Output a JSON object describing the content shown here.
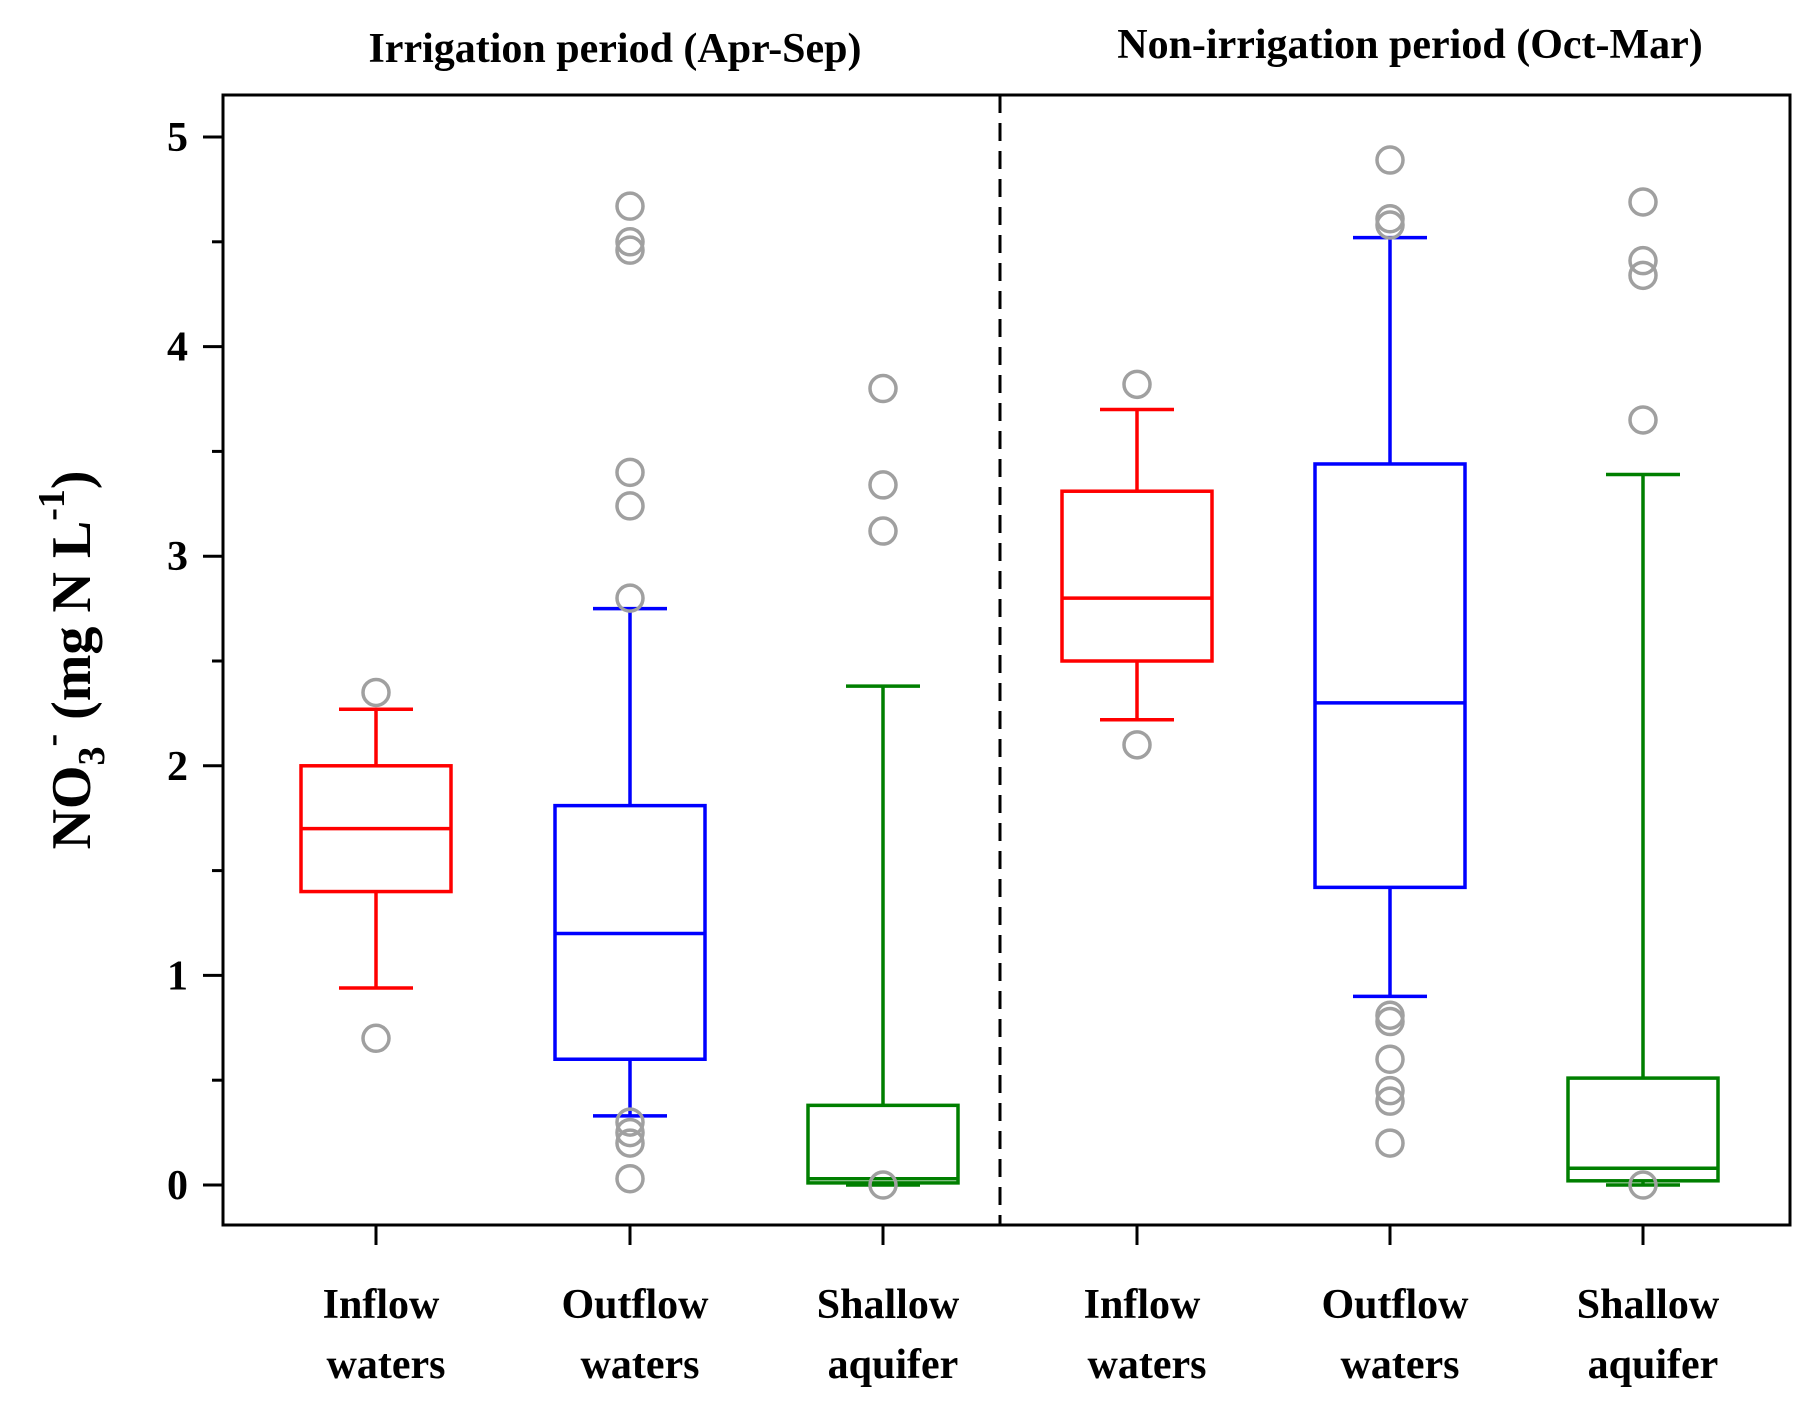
{
  "chart_data": {
    "type": "boxplot",
    "ylabel": {
      "base": "NO",
      "sub": "3",
      "sup": "-",
      "units": "(mg N L",
      "units_sup": "-1",
      "close": ")"
    },
    "ylim": [
      -0.2,
      5.2
    ],
    "yticks_major": [
      0,
      1,
      2,
      3,
      4,
      5
    ],
    "yticks_minor": [
      0.5,
      1.5,
      2.5,
      3.5,
      4.5
    ],
    "ytick_labels": [
      "0",
      "1",
      "2",
      "3",
      "4",
      "5"
    ],
    "divider_between_periods": "dashed",
    "colors": {
      "Inflow": "#ff0000",
      "Outflow": "#0000ff",
      "Shallow": "#007f00",
      "outlier": "#a0a0a0"
    },
    "periods": [
      {
        "title": "Irrigation period (Apr-Sep)",
        "boxes": [
          {
            "line1": "Inflow",
            "line2": "waters",
            "color_key": "Inflow",
            "whisker_low": 0.94,
            "q1": 1.4,
            "median": 1.7,
            "q3": 2.0,
            "whisker_high": 2.27,
            "outliers": [
              0.7,
              2.35
            ]
          },
          {
            "line1": "Outflow",
            "line2": "waters",
            "color_key": "Outflow",
            "whisker_low": 0.33,
            "q1": 0.6,
            "median": 1.2,
            "q3": 1.81,
            "whisker_high": 2.75,
            "outliers": [
              0.03,
              0.2,
              0.25,
              0.3,
              2.8,
              3.24,
              3.4,
              4.46,
              4.5,
              4.67
            ]
          },
          {
            "line1": "Shallow",
            "line2": "aquifer",
            "color_key": "Shallow",
            "whisker_low": 0.0,
            "q1": 0.01,
            "median": 0.03,
            "q3": 0.38,
            "whisker_high": 2.38,
            "outliers": [
              0.0,
              3.12,
              3.34,
              3.8
            ]
          }
        ]
      },
      {
        "title": "Non-irrigation period (Oct-Mar)",
        "boxes": [
          {
            "line1": "Inflow",
            "line2": "waters",
            "color_key": "Inflow",
            "whisker_low": 2.22,
            "q1": 2.5,
            "median": 2.8,
            "q3": 3.31,
            "whisker_high": 3.7,
            "outliers": [
              2.1,
              3.82
            ]
          },
          {
            "line1": "Outflow",
            "line2": "waters",
            "color_key": "Outflow",
            "whisker_low": 0.9,
            "q1": 1.42,
            "median": 2.3,
            "q3": 3.44,
            "whisker_high": 4.52,
            "outliers": [
              0.2,
              0.4,
              0.45,
              0.6,
              0.78,
              0.81,
              4.58,
              4.61,
              4.89
            ]
          },
          {
            "line1": "Shallow",
            "line2": "aquifer",
            "color_key": "Shallow",
            "whisker_low": 0.0,
            "q1": 0.02,
            "median": 0.08,
            "q3": 0.51,
            "whisker_high": 3.39,
            "outliers": [
              0.0,
              3.65,
              4.34,
              4.41,
              4.69
            ]
          }
        ]
      }
    ]
  }
}
